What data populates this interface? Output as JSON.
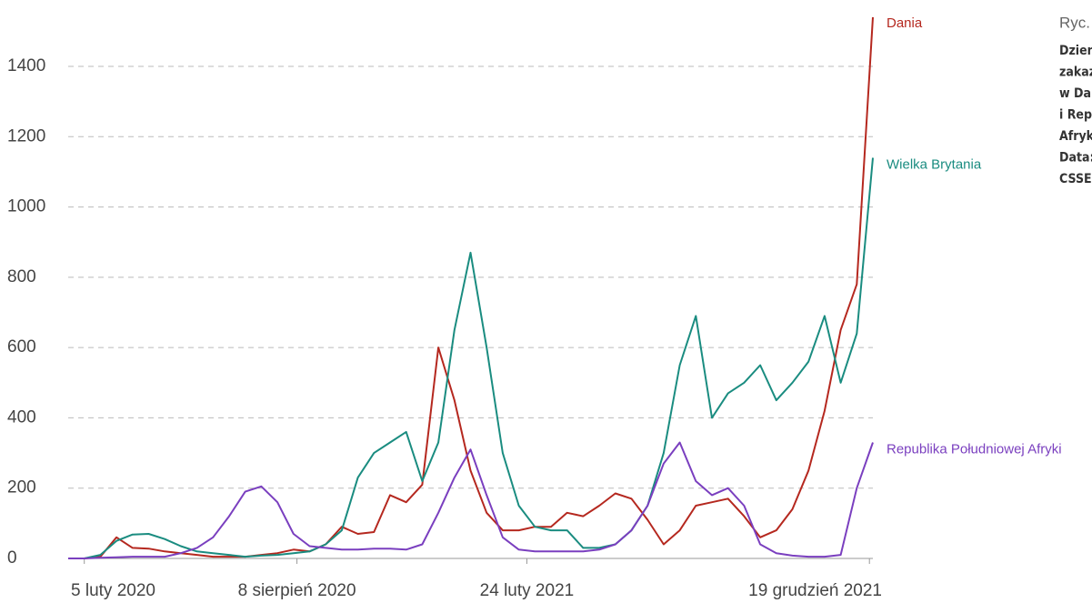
{
  "chart_data": {
    "type": "line",
    "x": [
      "2020-01-22",
      "2020-02-05",
      "2020-02-19",
      "2020-03-04",
      "2020-03-18",
      "2020-04-01",
      "2020-04-15",
      "2020-04-29",
      "2020-05-13",
      "2020-05-27",
      "2020-06-10",
      "2020-06-24",
      "2020-07-08",
      "2020-07-22",
      "2020-08-05",
      "2020-08-19",
      "2020-09-02",
      "2020-09-16",
      "2020-09-30",
      "2020-10-14",
      "2020-10-28",
      "2020-11-11",
      "2020-11-25",
      "2020-12-09",
      "2020-12-23",
      "2021-01-06",
      "2021-01-20",
      "2021-02-03",
      "2021-02-17",
      "2021-03-03",
      "2021-03-17",
      "2021-03-31",
      "2021-04-14",
      "2021-04-28",
      "2021-05-12",
      "2021-05-26",
      "2021-06-09",
      "2021-06-23",
      "2021-07-07",
      "2021-07-21",
      "2021-08-04",
      "2021-08-18",
      "2021-09-01",
      "2021-09-15",
      "2021-09-29",
      "2021-10-13",
      "2021-10-27",
      "2021-11-10",
      "2021-11-24",
      "2021-12-08",
      "2021-12-22"
    ],
    "series": [
      {
        "name": "Dania",
        "color": "#b5281f",
        "values": [
          0,
          0,
          5,
          60,
          30,
          28,
          20,
          15,
          10,
          5,
          5,
          5,
          10,
          15,
          25,
          20,
          40,
          90,
          70,
          75,
          180,
          160,
          210,
          600,
          450,
          250,
          130,
          80,
          80,
          90,
          90,
          130,
          120,
          150,
          185,
          170,
          110,
          40,
          80,
          150,
          160,
          170,
          120,
          60,
          80,
          140,
          250,
          420,
          650,
          780,
          1540
        ]
      },
      {
        "name": "Wielka Brytania",
        "color": "#1a8c80",
        "values": [
          0,
          0,
          10,
          50,
          68,
          70,
          55,
          35,
          20,
          15,
          10,
          5,
          8,
          10,
          15,
          20,
          40,
          80,
          230,
          300,
          330,
          360,
          220,
          330,
          650,
          870,
          600,
          300,
          150,
          90,
          80,
          80,
          30,
          30,
          40,
          80,
          150,
          300,
          550,
          690,
          400,
          470,
          500,
          550,
          450,
          500,
          560,
          690,
          500,
          640,
          1140
        ]
      },
      {
        "name": "Republika Południowej Afryki",
        "color": "#7a3fbf",
        "values": [
          0,
          0,
          2,
          3,
          5,
          5,
          5,
          15,
          30,
          60,
          120,
          190,
          205,
          160,
          70,
          35,
          30,
          25,
          25,
          28,
          28,
          25,
          40,
          130,
          230,
          310,
          180,
          60,
          25,
          20,
          20,
          20,
          20,
          25,
          40,
          80,
          150,
          270,
          330,
          220,
          180,
          200,
          150,
          40,
          15,
          8,
          5,
          5,
          10,
          200,
          330
        ]
      }
    ],
    "xlim": [
      "2020-01-22",
      "2021-12-22"
    ],
    "xticks": [
      {
        "value": "2020-02-05",
        "label": "5 luty 2020"
      },
      {
        "value": "2020-08-08",
        "label": "8 sierpień 2020"
      },
      {
        "value": "2021-02-24",
        "label": "24 luty 2021"
      },
      {
        "value": "2021-12-19",
        "label": "19 grudzień 2021"
      }
    ],
    "ylim": [
      0,
      1400
    ],
    "yticks": [
      0,
      200,
      400,
      600,
      800,
      1000,
      1200,
      1400
    ],
    "grid": true,
    "figure_label": "Ryc.",
    "caption_lines": [
      "Dzien",
      "zakaz",
      "w Da",
      "i Rep",
      "Afryk",
      "Data:",
      "CSSEG"
    ]
  }
}
